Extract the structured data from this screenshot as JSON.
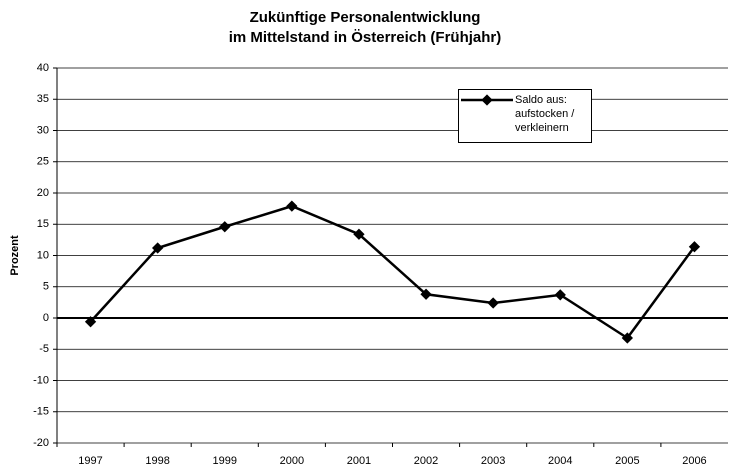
{
  "chart_data": {
    "type": "line",
    "title": "Zukünftige Personalentwicklung\nim Mittelstand in Österreich (Frühjahr)",
    "y_label": "Prozent",
    "categories": [
      "1997",
      "1998",
      "1999",
      "2000",
      "2001",
      "2002",
      "2003",
      "2004",
      "2005",
      "2006"
    ],
    "series": [
      {
        "name": "Saldo aus: aufstocken / verkleinern",
        "color": "#000000",
        "values": [
          -0.6,
          11.2,
          14.6,
          17.9,
          13.4,
          3.8,
          2.4,
          3.7,
          -3.2,
          11.4
        ]
      }
    ],
    "ylim": [
      -20,
      40
    ],
    "yticks": [
      -20,
      -15,
      -10,
      -5,
      0,
      5,
      10,
      15,
      20,
      25,
      30,
      35,
      40
    ],
    "grid": true,
    "legend": "top-right"
  }
}
